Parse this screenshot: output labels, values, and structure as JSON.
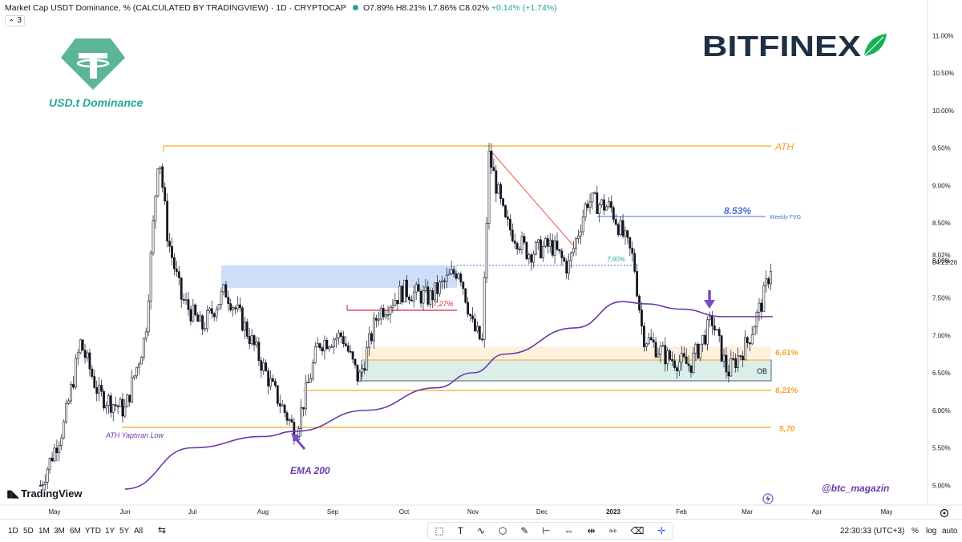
{
  "header": {
    "symbol": "Market Cap USDT Dominance, % (CALCULATED BY TRADINGVIEW) · 1D · CRYPTOCAP",
    "open": "O7.89%",
    "high": "H8.21%",
    "low": "L7.86%",
    "close": "C8.02%",
    "change": "+0.14% (+1.74%)",
    "indicator_count": "3"
  },
  "branding": {
    "left_title": "USD.t Dominance",
    "right_logo": "BITFINEX",
    "watermark": "@btc_magazin",
    "tv_logo": "TradingView"
  },
  "annotations": {
    "ath": "ATH",
    "fvg_value": "8.53%",
    "fvg_label": "Weekly FVG",
    "level_790": "7,90%",
    "level_727": "7,27%",
    "level_661": "6,61%",
    "level_621": "6,21%",
    "level_570": "5,70",
    "ob": "OB",
    "ath_low": "ATH Yaptıran Low",
    "ema": "EMA 200"
  },
  "price_axis": {
    "current_price": "8.02%",
    "countdown": "04:29:26"
  },
  "colors": {
    "up": "#26a69a",
    "candle": "#131722",
    "orange": "#f5a623",
    "ema": "#6a3aa8",
    "blue_zone": "#c6d8f7",
    "ob_zone": "#dceee8",
    "peach_zone": "#fdf0df",
    "fvg": "#4a6fd6",
    "red": "#d7263d",
    "teal": "#26a69a",
    "bitfinex_text": "#1f3044",
    "bitfinex_leaf": "#16b157"
  },
  "bottom_toolbar": {
    "timeframes": [
      "1D",
      "5D",
      "1M",
      "3M",
      "6M",
      "YTD",
      "1Y",
      "5Y",
      "All"
    ],
    "clock": "22:30:33 (UTC+3)",
    "toggles": [
      "%",
      "log",
      "auto"
    ]
  },
  "chart_data": {
    "type": "candlestick",
    "title": "Market Cap USDT Dominance, %",
    "ylim": [
      4.9,
      11.1
    ],
    "y_ticks": [
      "5.00%",
      "5.50%",
      "6.00%",
      "6.50%",
      "7.00%",
      "7.50%",
      "8.00%",
      "8.50%",
      "9.00%",
      "9.50%",
      "10.00%",
      "10.50%",
      "11.00%"
    ],
    "x_ticks": [
      "May",
      "Jun",
      "Jul",
      "Aug",
      "Sep",
      "Oct",
      "Nov",
      "Dec",
      "2023",
      "Feb",
      "Mar",
      "Apr",
      "May"
    ],
    "levels": [
      {
        "label": "ATH",
        "value": 9.5
      },
      {
        "label": "Weekly FVG",
        "value": 8.53
      },
      {
        "label": "7,90%",
        "value": 7.9
      },
      {
        "label": "7,27%",
        "value": 7.27
      },
      {
        "label": "6,61%",
        "value": 6.61
      },
      {
        "label": "6,21%",
        "value": 6.21
      },
      {
        "label": "5,70",
        "value": 5.7
      }
    ],
    "zones": [
      {
        "name": "blue supply zone",
        "low": 7.58,
        "high": 7.9
      },
      {
        "name": "peach zone",
        "low": 6.61,
        "high": 6.8
      },
      {
        "name": "OB",
        "low": 6.34,
        "high": 6.61
      }
    ],
    "price_path": [
      [
        "Apr 25",
        5.0
      ],
      [
        "May 5",
        5.8
      ],
      [
        "May 12",
        6.9
      ],
      [
        "May 20",
        6.2
      ],
      [
        "Jun 1",
        6.0
      ],
      [
        "Jun 10",
        7.0
      ],
      [
        "Jun 16",
        9.5
      ],
      [
        "Jun 20",
        8.3
      ],
      [
        "Jun 26",
        7.5
      ],
      [
        "Jul 5",
        7.1
      ],
      [
        "Jul 15",
        7.6
      ],
      [
        "Jul 22",
        7.2
      ],
      [
        "Jul 28",
        6.8
      ],
      [
        "Aug 5",
        6.3
      ],
      [
        "Aug 15",
        5.7
      ],
      [
        "Aug 25",
        6.9
      ],
      [
        "Sep 5",
        7.0
      ],
      [
        "Sep 12",
        6.4
      ],
      [
        "Sep 20",
        7.3
      ],
      [
        "Oct 1",
        7.6
      ],
      [
        "Oct 12",
        7.5
      ],
      [
        "Oct 25",
        7.9
      ],
      [
        "Nov 1",
        7.1
      ],
      [
        "Nov 5",
        6.9
      ],
      [
        "Nov 8",
        9.4
      ],
      [
        "Nov 15",
        8.5
      ],
      [
        "Nov 25",
        8.1
      ],
      [
        "Dec 5",
        8.2
      ],
      [
        "Dec 12",
        7.9
      ],
      [
        "Dec 20",
        8.8
      ],
      [
        "Dec 30",
        8.7
      ],
      [
        "Jan 10",
        8.0
      ],
      [
        "Jan 14",
        7.0
      ],
      [
        "Jan 25",
        6.7
      ],
      [
        "Feb 5",
        6.6
      ],
      [
        "Feb 15",
        7.2
      ],
      [
        "Feb 22",
        6.5
      ],
      [
        "Mar 1",
        6.9
      ],
      [
        "Mar 8",
        7.5
      ],
      [
        "Mar 12",
        8.02
      ]
    ],
    "ema200": [
      [
        "Jun 1",
        4.95
      ],
      [
        "Jul 1",
        5.5
      ],
      [
        "Aug 1",
        5.65
      ],
      [
        "Aug 15",
        5.72
      ],
      [
        "Sep 15",
        6.0
      ],
      [
        "Oct 15",
        6.3
      ],
      [
        "Nov 1",
        6.5
      ],
      [
        "Nov 15",
        6.75
      ],
      [
        "Dec 15",
        7.1
      ],
      [
        "Jan 5",
        7.45
      ],
      [
        "Jan 15",
        7.42
      ],
      [
        "Feb 1",
        7.35
      ],
      [
        "Feb 20",
        7.25
      ],
      [
        "Mar 12",
        7.25
      ]
    ]
  }
}
